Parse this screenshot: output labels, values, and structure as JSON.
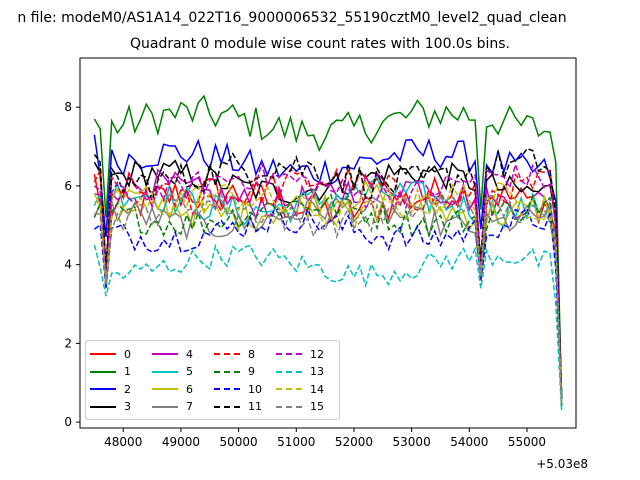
{
  "suptitle": "n file: modeM0/AS1A14_022T16_9000006532_55190cztM0_level2_quad_clean",
  "chart_data": {
    "type": "line",
    "title": "Quadrant 0 module wise count rates with 100.0s bins.",
    "xlabel": "",
    "ylabel": "",
    "x_offset_label": "+5.03e8",
    "xlim": [
      47250,
      55850
    ],
    "ylim": [
      -0.15,
      9.25
    ],
    "x_ticks": [
      48000,
      49000,
      50000,
      51000,
      52000,
      53000,
      54000,
      55000
    ],
    "y_ticks": [
      0,
      2,
      4,
      6,
      8
    ],
    "x_start": 47500,
    "x_end": 55600,
    "x_step": 100,
    "gap_x": 54200,
    "grid": false,
    "legend_placement": "lower-left",
    "series": [
      {
        "name": "0",
        "color": "#ff0000",
        "dash": "solid",
        "mean": 5.6,
        "noise": 0.45,
        "start": 6.3,
        "dip": 3.4,
        "end": 0.5
      },
      {
        "name": "1",
        "color": "#008000",
        "dash": "solid",
        "mean": 7.6,
        "noise": 0.45,
        "start": 7.7,
        "dip": 5.2,
        "end": 0.6
      },
      {
        "name": "2",
        "color": "#0000ff",
        "dash": "solid",
        "mean": 6.6,
        "noise": 0.4,
        "start": 7.3,
        "dip": 4.7,
        "end": 0.6
      },
      {
        "name": "3",
        "color": "#000000",
        "dash": "solid",
        "mean": 6.1,
        "noise": 0.35,
        "start": 6.6,
        "dip": 3.8,
        "end": 0.7
      },
      {
        "name": "4",
        "color": "#bf00bf",
        "dash": "solid",
        "mean": 5.8,
        "noise": 0.4,
        "start": 5.8,
        "dip": 3.6,
        "end": 0.5
      },
      {
        "name": "5",
        "color": "#00bfbf",
        "dash": "solid",
        "mean": 5.6,
        "noise": 0.4,
        "start": 5.5,
        "dip": 3.6,
        "end": 0.4
      },
      {
        "name": "6",
        "color": "#bfbf00",
        "dash": "solid",
        "mean": 5.5,
        "noise": 0.4,
        "start": 5.8,
        "dip": 3.5,
        "end": 0.5
      },
      {
        "name": "7",
        "color": "#808080",
        "dash": "solid",
        "mean": 5.2,
        "noise": 0.35,
        "start": 5.2,
        "dip": 3.5,
        "end": 0.5
      },
      {
        "name": "8",
        "color": "#ff0000",
        "dash": "dashed",
        "mean": 5.9,
        "noise": 0.4,
        "start": 6.1,
        "dip": 3.6,
        "end": 0.5
      },
      {
        "name": "9",
        "color": "#008000",
        "dash": "dashed",
        "mean": 5.3,
        "noise": 0.35,
        "start": 5.2,
        "dip": 3.6,
        "end": 0.4
      },
      {
        "name": "10",
        "color": "#0000ff",
        "dash": "dashed",
        "mean": 4.9,
        "noise": 0.35,
        "start": 4.9,
        "dip": 3.4,
        "end": 0.5
      },
      {
        "name": "11",
        "color": "#000000",
        "dash": "dashed",
        "mean": 6.3,
        "noise": 0.45,
        "start": 6.8,
        "dip": 3.9,
        "end": 0.6
      },
      {
        "name": "12",
        "color": "#bf00bf",
        "dash": "dashed",
        "mean": 6.0,
        "noise": 0.35,
        "start": 6.0,
        "dip": 3.6,
        "end": 0.5
      },
      {
        "name": "13",
        "color": "#00bfbf",
        "dash": "dashed",
        "mean": 4.0,
        "noise": 0.3,
        "start": 4.5,
        "dip": 3.2,
        "end": 0.3
      },
      {
        "name": "14",
        "color": "#bfbf00",
        "dash": "dashed",
        "mean": 5.5,
        "noise": 0.4,
        "start": 5.6,
        "dip": 3.5,
        "end": 0.5
      },
      {
        "name": "15",
        "color": "#808080",
        "dash": "dashed",
        "mean": 5.3,
        "noise": 0.35,
        "start": 5.3,
        "dip": 3.5,
        "end": 0.5
      }
    ]
  }
}
